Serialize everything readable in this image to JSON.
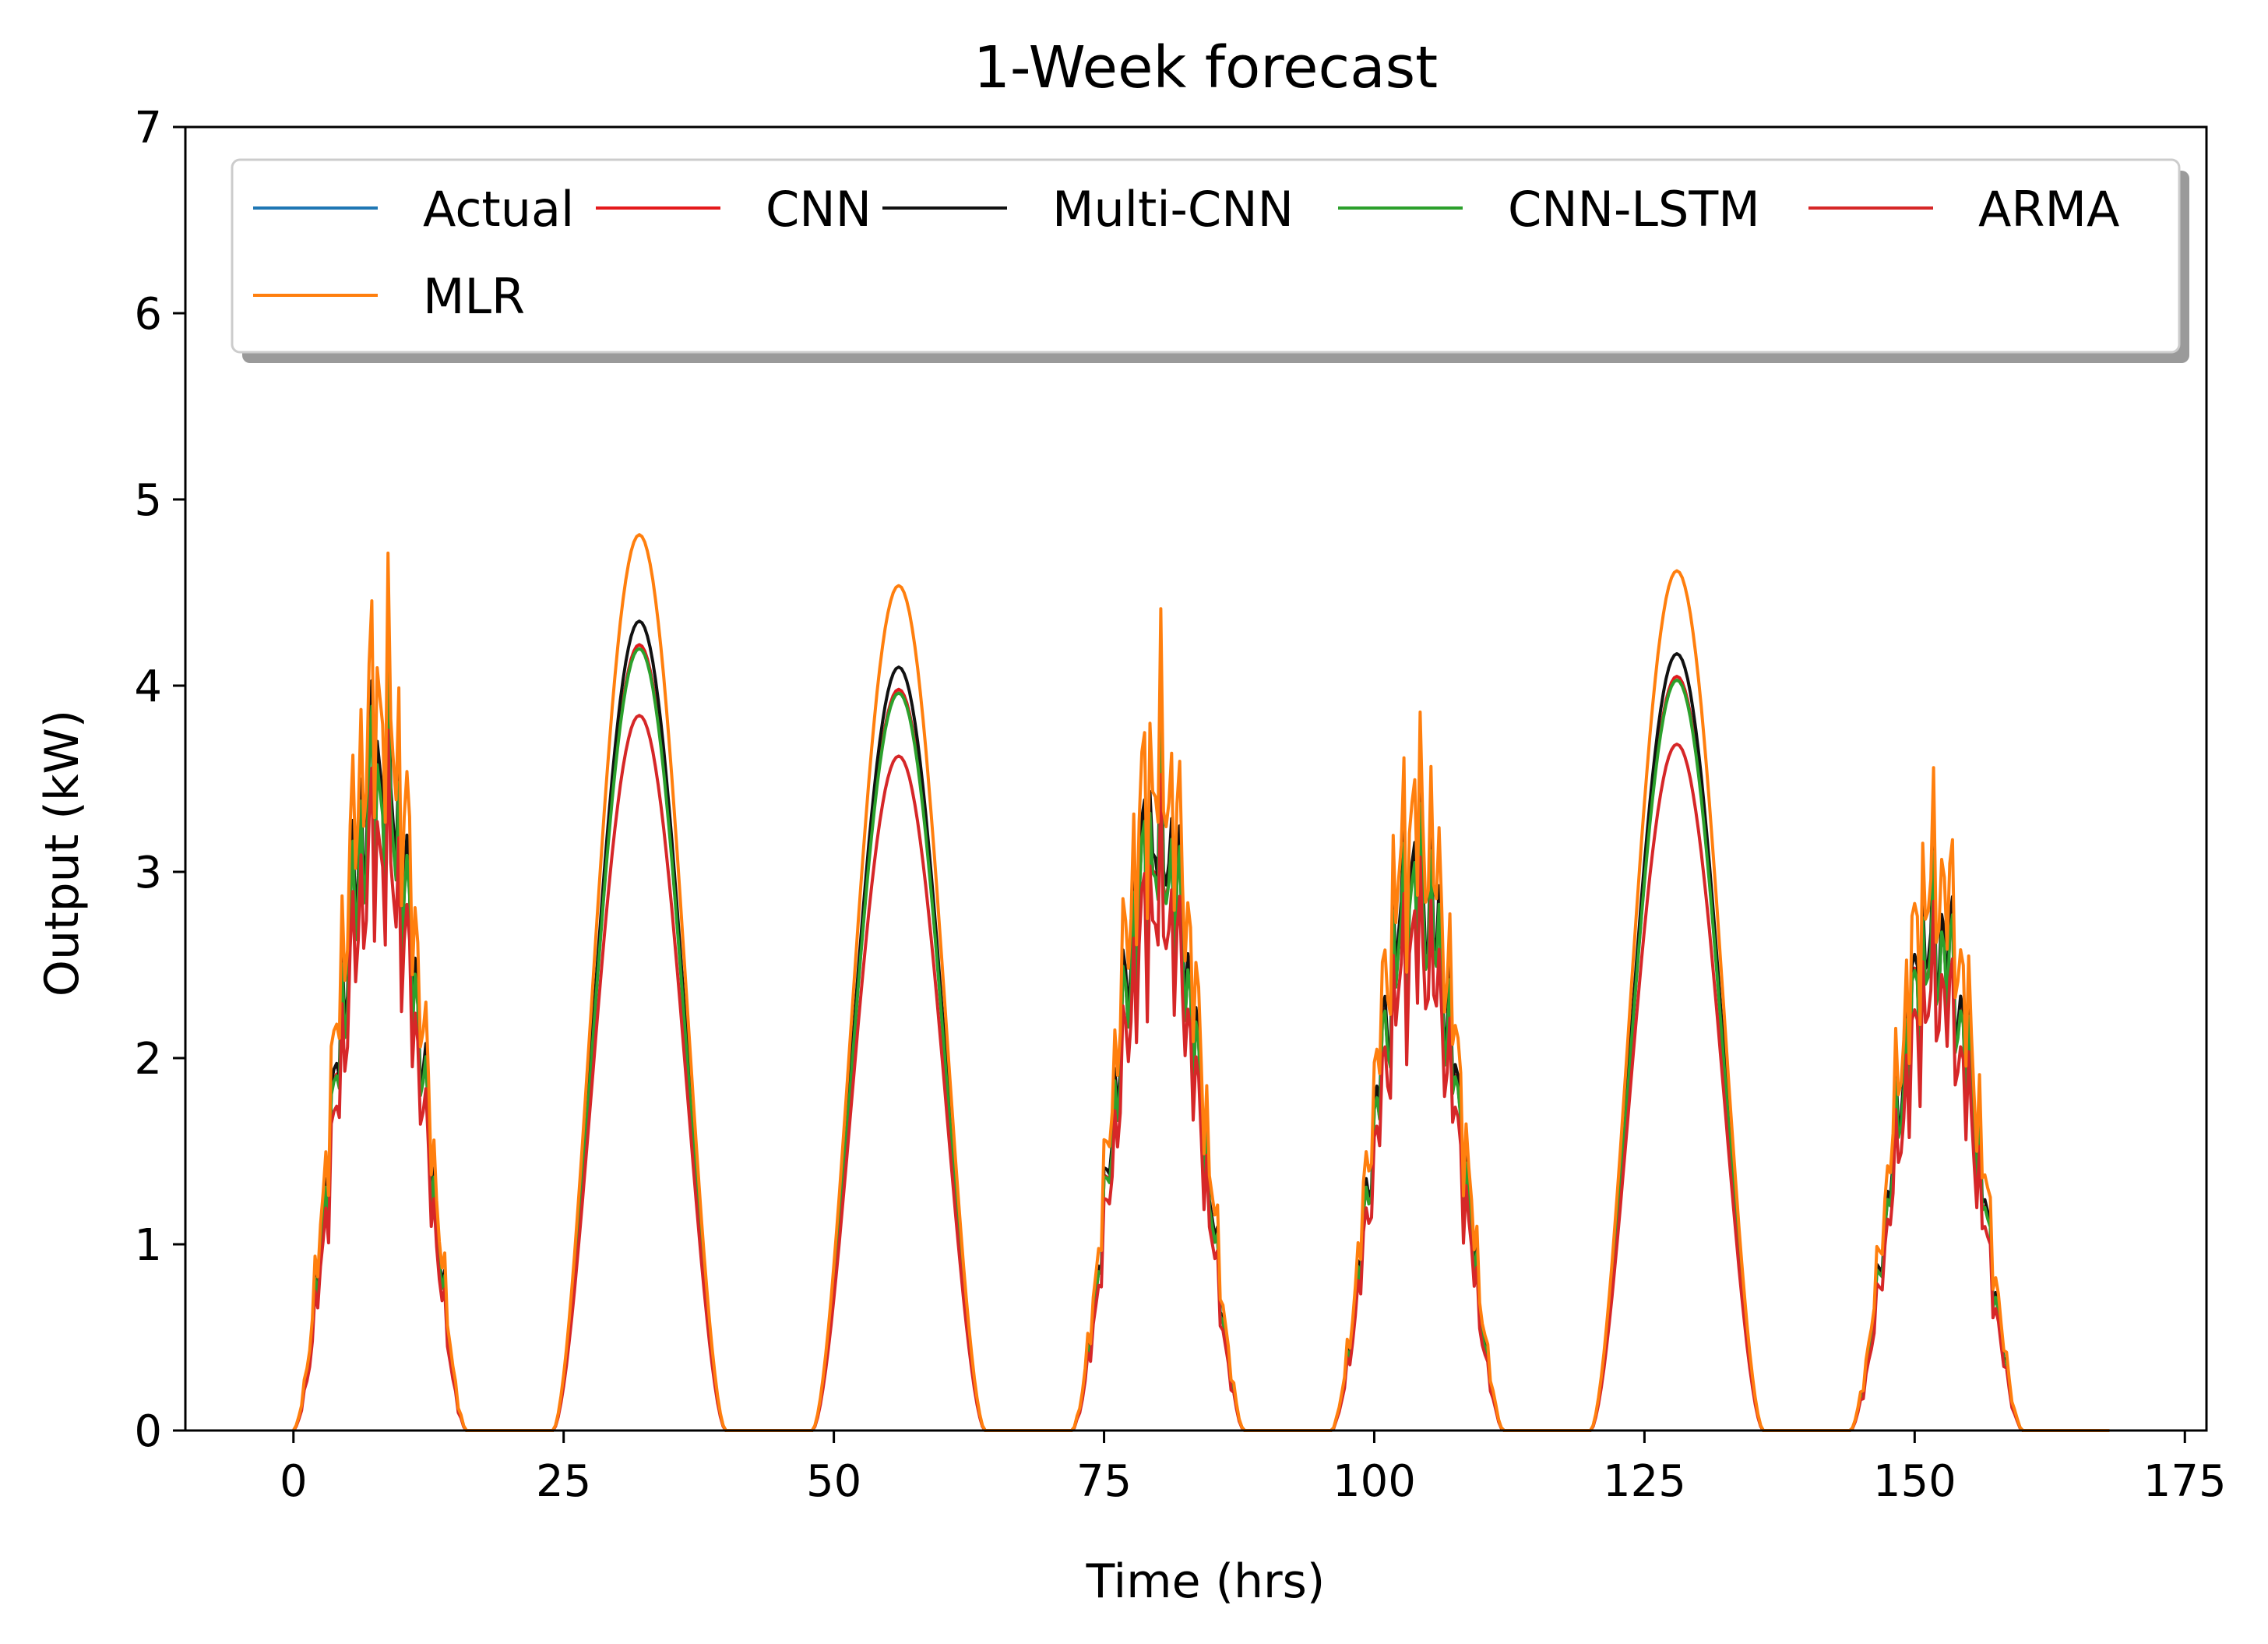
{
  "chart_data": {
    "type": "line",
    "title": "1-Week forecast",
    "xlabel": "Time (hrs)",
    "ylabel": "Output (kW)",
    "xlim": [
      -10,
      177
    ],
    "ylim": [
      0,
      7
    ],
    "xticks": [
      0,
      25,
      50,
      75,
      100,
      125,
      150,
      175
    ],
    "xtick_labels": [
      "0",
      "25",
      "50",
      "75",
      "100",
      "125",
      "150",
      "175"
    ],
    "yticks": [
      0,
      1,
      2,
      3,
      4,
      5,
      6,
      7
    ],
    "ytick_labels": [
      "0",
      "1",
      "2",
      "3",
      "4",
      "5",
      "6",
      "7"
    ],
    "grid": false,
    "legend_position": "top",
    "x_range": [
      0,
      168
    ],
    "day_centers": [
      8,
      32,
      56,
      80,
      104,
      128,
      152
    ],
    "day_peaks_actual": [
      4.3,
      4.22,
      3.98,
      3.9,
      3.6,
      4.05,
      3.25
    ],
    "series": [
      {
        "name": "Actual",
        "color": "#1f77b4",
        "scale": 1.0
      },
      {
        "name": "CNN",
        "color": "#e41a1c",
        "scale": 1.0
      },
      {
        "name": "Multi-CNN",
        "color": "#111111",
        "scale": 1.03
      },
      {
        "name": "CNN-LSTM",
        "color": "#2ca02c",
        "scale": 0.995
      },
      {
        "name": "ARMA",
        "color": "#d62728",
        "scale": 0.91
      },
      {
        "name": "MLR",
        "color": "#ff7f0e",
        "scale": 1.14
      }
    ]
  }
}
